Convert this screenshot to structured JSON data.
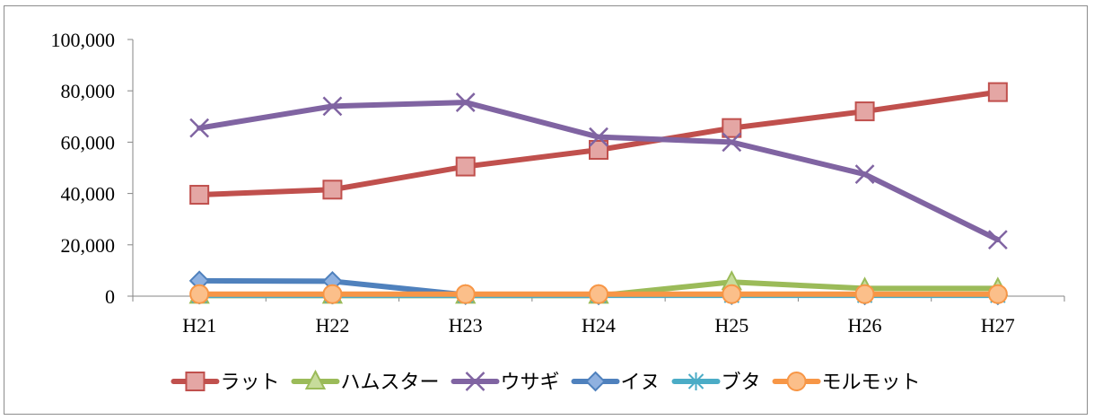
{
  "chart_data": {
    "type": "line",
    "title": "",
    "xlabel": "",
    "ylabel": "",
    "categories": [
      "H21",
      "H22",
      "H23",
      "H24",
      "H25",
      "H26",
      "H27"
    ],
    "ylim": [
      0,
      100000
    ],
    "yticks": [
      0,
      20000,
      40000,
      60000,
      80000,
      100000
    ],
    "ytick_labels": [
      "0",
      "20,000",
      "40,000",
      "60,000",
      "80,000",
      "100,000"
    ],
    "grid": false,
    "legend_position": "bottom",
    "series": [
      {
        "name": "ラット",
        "color": "#c0504d",
        "marker": "square",
        "values": [
          39500,
          41500,
          50500,
          57000,
          65500,
          72000,
          79500
        ]
      },
      {
        "name": "ハムスター",
        "color": "#9bbb59",
        "marker": "triangle",
        "values": [
          200,
          200,
          200,
          200,
          5500,
          3000,
          3000
        ]
      },
      {
        "name": "ウサギ",
        "color": "#8064a2",
        "marker": "x",
        "values": [
          65500,
          74000,
          75500,
          62000,
          60000,
          47500,
          22000
        ]
      },
      {
        "name": "イヌ",
        "color": "#4f81bd",
        "marker": "diamond",
        "values": [
          6000,
          5800,
          500,
          400,
          500,
          400,
          400
        ]
      },
      {
        "name": "ブタ",
        "color": "#4bacc6",
        "marker": "asterisk",
        "values": [
          300,
          300,
          300,
          300,
          300,
          300,
          300
        ]
      },
      {
        "name": "モルモット",
        "color": "#f79646",
        "marker": "circle",
        "values": [
          800,
          800,
          800,
          800,
          800,
          800,
          800
        ]
      }
    ]
  }
}
